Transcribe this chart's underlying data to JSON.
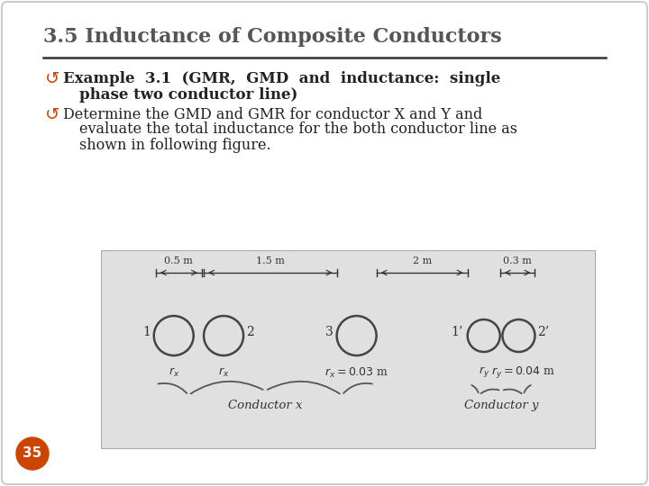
{
  "title": "3.5 Inductance of Composite Conductors",
  "bullet_symbol": "↺",
  "bullet1_bold_line1": "Example  3.1  (GMR,  GMD  and  inductance:  single",
  "bullet1_bold_line2": "phase two conductor line)",
  "bullet2_line1": "Determine the GMD and GMR for conductor X and Y and",
  "bullet2_line2": "evaluate the total inductance for the both conductor line as",
  "bullet2_line3": "shown in following figure.",
  "bg_color": "#ffffff",
  "title_color": "#555555",
  "text_color": "#222222",
  "diagram_bg": "#e0e0e0",
  "bullet_color": "#cc4400",
  "page_num": "35",
  "page_num_bg": "#cc4400",
  "dim_labels": [
    "0.5 m",
    "1.5 m",
    "2 m",
    "0.3 m"
  ],
  "conductor_labels": [
    "1",
    "2",
    "3",
    "1’",
    "2’"
  ],
  "rx_sublabel": "r_x",
  "rx_eq": "r_x = 0.03 m",
  "ry_sublabel": "r_y",
  "ry_eq": "r_y = 0.04 m",
  "cond_x_label": "Conductor x",
  "cond_y_label": "Conductor y"
}
